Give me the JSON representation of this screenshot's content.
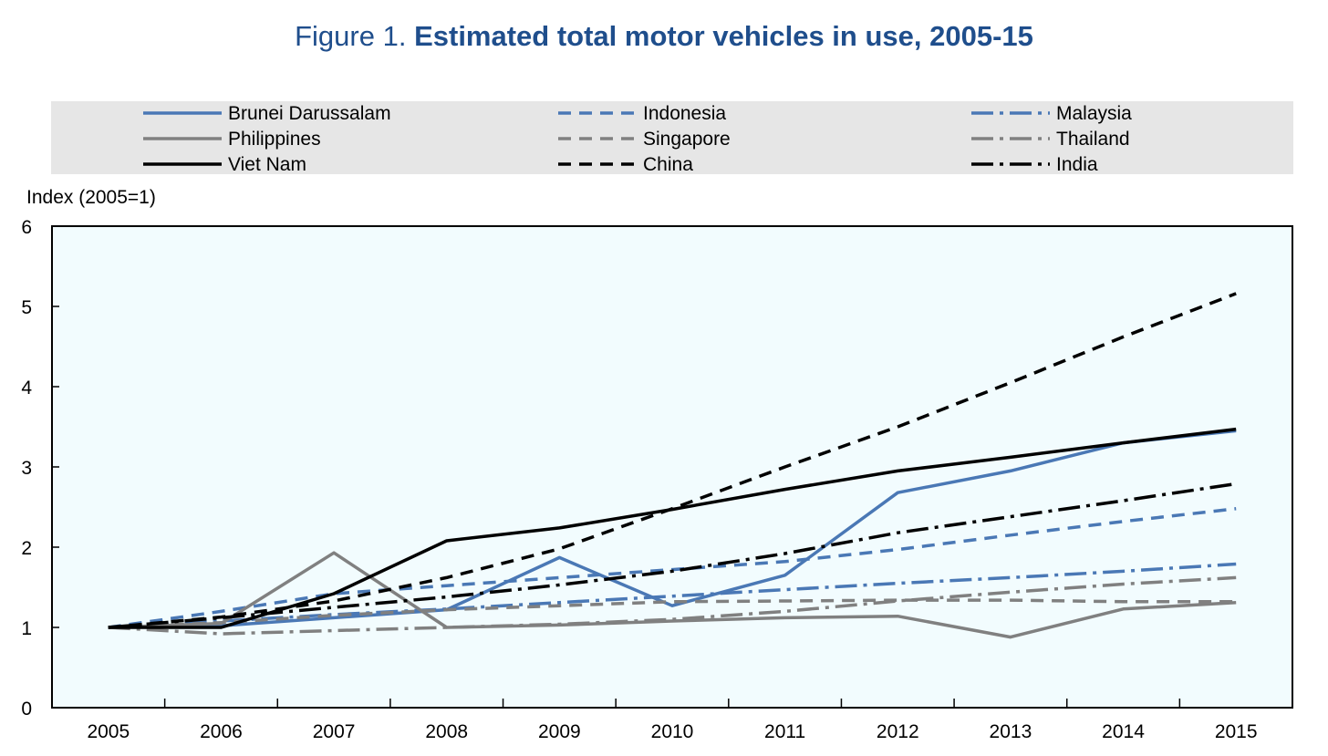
{
  "figure": {
    "prefix": "Figure 1.",
    "title": "Estimated total motor vehicles in use, 2005-15"
  },
  "chart_data": {
    "type": "line",
    "title": "Figure 1. Estimated total motor vehicles in use, 2005-15",
    "ylabel": "Index (2005=1)",
    "xlabel": "",
    "x": [
      2005,
      2006,
      2007,
      2008,
      2009,
      2010,
      2011,
      2012,
      2013,
      2014,
      2015
    ],
    "ylim": [
      0,
      6
    ],
    "yticks": [
      0,
      1,
      2,
      3,
      4,
      5,
      6
    ],
    "grid": false,
    "legend_position": "top",
    "plot_background": "#f2fcfe",
    "legend_background": "#e6e6e6",
    "series": [
      {
        "name": "Brunei Darussalam",
        "color": "#4a78b5",
        "dash": "solid",
        "values": [
          1.0,
          1.02,
          1.12,
          1.22,
          1.87,
          1.27,
          1.65,
          2.68,
          2.95,
          3.3,
          3.45
        ]
      },
      {
        "name": "Indonesia",
        "color": "#4a78b5",
        "dash": "dash",
        "values": [
          1.0,
          1.2,
          1.42,
          1.52,
          1.62,
          1.72,
          1.82,
          1.97,
          2.15,
          2.32,
          2.48
        ]
      },
      {
        "name": "Malaysia",
        "color": "#4a78b5",
        "dash": "dashdot",
        "values": [
          1.0,
          1.08,
          1.16,
          1.23,
          1.31,
          1.39,
          1.47,
          1.55,
          1.62,
          1.7,
          1.79
        ]
      },
      {
        "name": "Philippines",
        "color": "#808080",
        "dash": "solid",
        "values": [
          1.0,
          1.05,
          1.93,
          1.0,
          1.03,
          1.08,
          1.12,
          1.14,
          0.88,
          1.23,
          1.31
        ]
      },
      {
        "name": "Singapore",
        "color": "#808080",
        "dash": "dash",
        "values": [
          1.0,
          1.06,
          1.15,
          1.22,
          1.27,
          1.32,
          1.33,
          1.34,
          1.34,
          1.32,
          1.32
        ]
      },
      {
        "name": "Thailand",
        "color": "#808080",
        "dash": "dashdot",
        "values": [
          1.0,
          0.92,
          0.96,
          1.0,
          1.04,
          1.1,
          1.2,
          1.33,
          1.44,
          1.54,
          1.62
        ]
      },
      {
        "name": "Viet Nam",
        "color": "#000000",
        "dash": "solid",
        "values": [
          1.0,
          1.0,
          1.42,
          2.08,
          2.24,
          2.47,
          2.72,
          2.95,
          3.12,
          3.3,
          3.47
        ]
      },
      {
        "name": "China",
        "color": "#000000",
        "dash": "dash",
        "values": [
          1.0,
          1.13,
          1.33,
          1.62,
          1.98,
          2.48,
          3.0,
          3.5,
          4.05,
          4.62,
          5.16
        ]
      },
      {
        "name": "India",
        "color": "#000000",
        "dash": "dashdot",
        "values": [
          1.0,
          1.12,
          1.25,
          1.38,
          1.53,
          1.7,
          1.92,
          2.18,
          2.38,
          2.58,
          2.79
        ]
      }
    ]
  }
}
